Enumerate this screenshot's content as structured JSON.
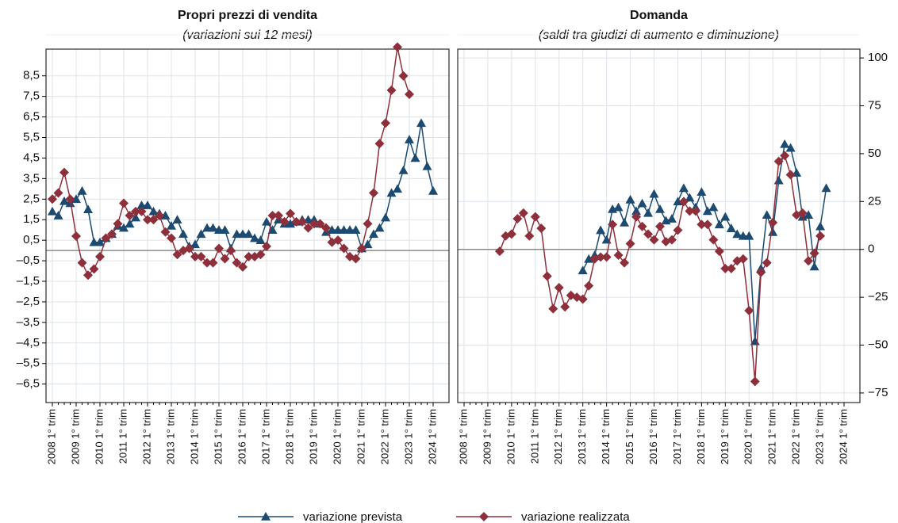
{
  "chart_data": [
    {
      "type": "line",
      "title": "Propri prezzi di vendita",
      "subtitle": "(variazioni sui 12 mesi)",
      "categories": [
        "2008 1° trim",
        null,
        null,
        null,
        "2009 1° trim",
        null,
        null,
        null,
        "2010 1° trim",
        null,
        null,
        null,
        "2011 1° trim",
        null,
        null,
        null,
        "2012 1° trim",
        null,
        null,
        null,
        "2013 1° trim",
        null,
        null,
        null,
        "2014 1° trim",
        null,
        null,
        null,
        "2015 1° trim",
        null,
        null,
        null,
        "2016 1° trim",
        null,
        null,
        null,
        "2017 1° trim",
        null,
        null,
        null,
        "2018 1° trim",
        null,
        null,
        null,
        "2019 1° trim",
        null,
        null,
        null,
        "2020 1° trim",
        null,
        null,
        null,
        "2021 1° trim",
        null,
        null,
        null,
        "2022 1° trim",
        null,
        null,
        null,
        "2023 1° trim",
        null,
        null,
        null,
        "2024 1° trim"
      ],
      "ylim": [
        -7.4,
        9.8
      ],
      "yaxis_side": "left",
      "grid": true,
      "yticks": [
        {
          "value": 8.5,
          "label": "8,5"
        },
        {
          "value": 7.5,
          "label": "7,5"
        },
        {
          "value": 6.5,
          "label": "6,5"
        },
        {
          "value": 5.5,
          "label": "5,5"
        },
        {
          "value": 4.5,
          "label": "4,5"
        },
        {
          "value": 3.5,
          "label": "3,5"
        },
        {
          "value": 2.5,
          "label": "2,5"
        },
        {
          "value": 1.5,
          "label": "1,5"
        },
        {
          "value": 0.5,
          "label": "0,5"
        },
        {
          "value": -0.5,
          "label": "–0,5"
        },
        {
          "value": -1.5,
          "label": "–1,5"
        },
        {
          "value": -2.5,
          "label": "–2,5"
        },
        {
          "value": -3.5,
          "label": "–3,5"
        },
        {
          "value": -4.5,
          "label": "–4,5"
        },
        {
          "value": -5.5,
          "label": "–5,5"
        },
        {
          "value": -6.5,
          "label": "–6,5"
        }
      ],
      "series": [
        {
          "name": "variazione prevista",
          "color": "#1c4a70",
          "marker": "triangle",
          "values": [
            1.9,
            1.7,
            2.4,
            2.3,
            2.5,
            2.9,
            2.0,
            0.4,
            0.4,
            0.6,
            0.8,
            1.2,
            1.1,
            1.3,
            1.6,
            2.2,
            2.2,
            1.9,
            1.8,
            1.7,
            1.2,
            1.5,
            0.8,
            0.2,
            0.3,
            0.8,
            1.1,
            1.1,
            1.0,
            1.0,
            0.1,
            0.8,
            0.8,
            0.8,
            0.6,
            0.5,
            1.4,
            1.0,
            1.5,
            1.3,
            1.3,
            1.4,
            1.5,
            1.5,
            1.5,
            1.3,
            0.9,
            1.0,
            1.0,
            1.0,
            1.0,
            1.0,
            0.1,
            0.3,
            0.8,
            1.1,
            1.6,
            2.8,
            3.0,
            3.9,
            5.4,
            4.5,
            6.2,
            4.1,
            2.9
          ]
        },
        {
          "name": "variazione realizzata",
          "color": "#8e2f3c",
          "marker": "diamond",
          "values": [
            2.5,
            2.8,
            3.8,
            2.5,
            0.7,
            -0.6,
            -1.2,
            -0.9,
            -0.3,
            0.6,
            0.8,
            1.3,
            2.3,
            1.7,
            1.9,
            1.9,
            1.5,
            1.5,
            1.7,
            0.9,
            0.6,
            -0.2,
            0.0,
            0.1,
            -0.3,
            -0.3,
            -0.6,
            -0.6,
            0.1,
            -0.4,
            0.0,
            -0.6,
            -0.8,
            -0.3,
            -0.3,
            -0.2,
            0.2,
            1.7,
            1.7,
            1.4,
            1.8,
            1.4,
            1.4,
            1.1,
            1.3,
            1.3,
            1.1,
            0.4,
            0.5,
            0.1,
            -0.3,
            -0.4,
            0.1,
            1.3,
            2.8,
            5.2,
            6.2,
            7.8,
            9.9,
            8.5,
            7.6,
            null,
            null,
            null,
            null
          ]
        }
      ]
    },
    {
      "type": "line",
      "title": "Domanda",
      "subtitle": "(saldi tra giudizi di aumento e diminuzione)",
      "categories": [
        "2008 1° trim",
        null,
        null,
        null,
        "2009 1° trim",
        null,
        null,
        null,
        "2010 1° trim",
        null,
        null,
        null,
        "2011 1° trim",
        null,
        null,
        null,
        "2012 1° trim",
        null,
        null,
        null,
        "2013 1° trim",
        null,
        null,
        null,
        "2014 1° trim",
        null,
        null,
        null,
        "2015 1° trim",
        null,
        null,
        null,
        "2016 1° trim",
        null,
        null,
        null,
        "2017 1° trim",
        null,
        null,
        null,
        "2018 1° trim",
        null,
        null,
        null,
        "2019 1° trim",
        null,
        null,
        null,
        "2020 1° trim",
        null,
        null,
        null,
        "2021 1° trim",
        null,
        null,
        null,
        "2022 1° trim",
        null,
        null,
        null,
        "2023 1° trim",
        null,
        null,
        null,
        "2024 1° trim"
      ],
      "ylim": [
        -80,
        104.6
      ],
      "yaxis_side": "right",
      "grid": true,
      "yticks": [
        100,
        75,
        50,
        25,
        0,
        {
          "value": -25,
          "label": "−25"
        },
        {
          "value": -50,
          "label": "−50"
        },
        {
          "value": -75,
          "label": "−75"
        }
      ],
      "series": [
        {
          "name": "variazione prevista",
          "color": "#1c4a70",
          "marker": "triangle",
          "values": [
            null,
            null,
            null,
            null,
            null,
            null,
            null,
            null,
            null,
            null,
            null,
            null,
            null,
            null,
            null,
            null,
            null,
            null,
            null,
            null,
            -11,
            -5,
            -3,
            10,
            5,
            21,
            22,
            14,
            26,
            20,
            24,
            19,
            29,
            21,
            15,
            16,
            25,
            32,
            27,
            22,
            30,
            20,
            22,
            13,
            17,
            11,
            8,
            7,
            7,
            -48,
            -10,
            18,
            9,
            36,
            55,
            53,
            40,
            17,
            18,
            -9,
            12,
            32,
            null,
            null,
            null
          ]
        },
        {
          "name": "variazione realizzata",
          "color": "#8e2f3c",
          "marker": "diamond",
          "values": [
            null,
            null,
            null,
            null,
            null,
            null,
            -1,
            7,
            8,
            16,
            19,
            7,
            17,
            11,
            -14,
            -31,
            -20,
            -30,
            -24,
            -25,
            -26,
            -19,
            -5,
            -4,
            -4,
            13,
            -3,
            -7,
            3,
            17,
            12,
            8,
            5,
            12,
            4,
            5,
            10,
            25,
            20,
            20,
            13,
            13,
            5,
            -1,
            -10,
            -10,
            -6,
            -5,
            -32,
            -69,
            -12,
            -7,
            14,
            46,
            49,
            39,
            18,
            19,
            -6,
            -2,
            7,
            null,
            null,
            null,
            null
          ]
        }
      ]
    }
  ]
}
